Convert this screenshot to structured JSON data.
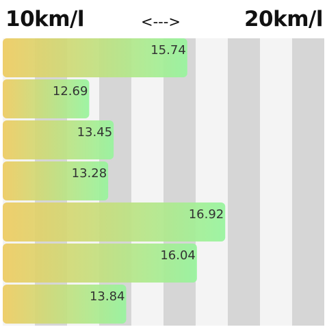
{
  "header": {
    "left_label": "10km/l",
    "mid_label": "<--->",
    "right_label": "20km/l"
  },
  "colors": {
    "stripe_dark": "#d6d6d6",
    "stripe_light": "#f4f4f4",
    "gradient_start": "#eecb60",
    "gradient_end": "#97f49d"
  },
  "chart_data": {
    "type": "bar",
    "orientation": "horizontal",
    "xlim": [
      10,
      20
    ],
    "values": [
      15.74,
      12.69,
      13.45,
      13.28,
      16.92,
      16.04,
      13.84
    ],
    "labels": [
      "15.74",
      "12.69",
      "13.45",
      "13.28",
      "16.92",
      "16.04",
      "13.84"
    ],
    "title": "",
    "xlabel": "",
    "ylabel": "",
    "grid": "alternating vertical stripes"
  }
}
